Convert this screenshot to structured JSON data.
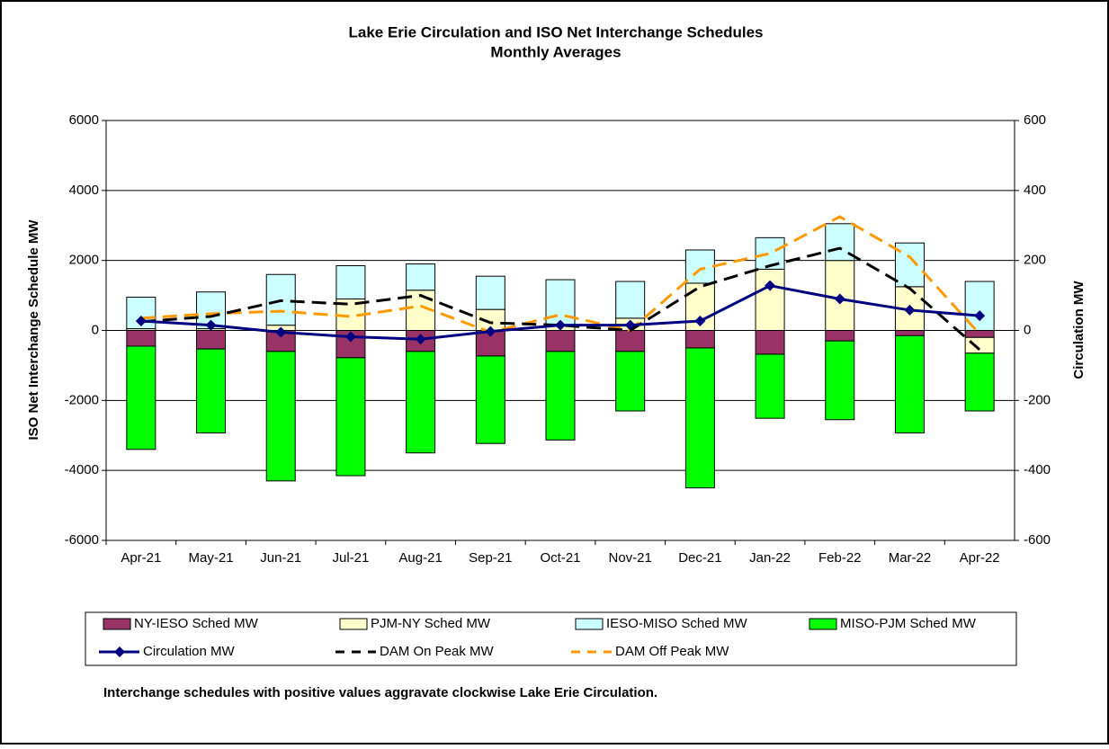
{
  "chart_data": {
    "type": "bar",
    "title": "Lake Erie Circulation and ISO Net Interchange Schedules",
    "subtitle": "Monthly Averages",
    "y_label": "ISO Net Interchange Schedule MW",
    "y2_label": "Circulation MW",
    "note": "Interchange schedules with positive values aggravate clockwise Lake Erie Circulation.",
    "stacked": true,
    "categories": [
      "Apr-21",
      "May-21",
      "Jun-21",
      "Jul-21",
      "Aug-21",
      "Sep-21",
      "Oct-21",
      "Nov-21",
      "Dec-21",
      "Jan-22",
      "Feb-22",
      "Mar-22",
      "Apr-22"
    ],
    "ylim": [
      -6000,
      6000
    ],
    "yticks": [
      -6000,
      -4000,
      -2000,
      0,
      2000,
      4000,
      6000
    ],
    "y2lim": [
      -600,
      600
    ],
    "y2ticks": [
      -600,
      -400,
      -200,
      0,
      200,
      400,
      600
    ],
    "grid": true,
    "series": [
      {
        "name": "NY-IESO Sched MW",
        "kind": "bar",
        "color": "#993366",
        "values": [
          -450,
          -530,
          -600,
          -780,
          -600,
          -730,
          -600,
          -600,
          -500,
          -680,
          -300,
          -150,
          -200
        ]
      },
      {
        "name": "PJM-NY Sched MW",
        "kind": "bar",
        "color": "#ffffcc",
        "values": [
          50,
          50,
          150,
          900,
          1150,
          600,
          150,
          350,
          1350,
          1750,
          2000,
          1250,
          -450
        ]
      },
      {
        "name": "IESO-MISO Sched MW",
        "kind": "bar",
        "color": "#ccffff",
        "values": [
          900,
          1050,
          1450,
          950,
          750,
          950,
          1300,
          1050,
          950,
          900,
          1050,
          1250,
          1400
        ]
      },
      {
        "name": "MISO-PJM Sched MW",
        "kind": "bar",
        "color": "#00ff00",
        "values": [
          -2950,
          -2400,
          -3700,
          -3370,
          -2900,
          -2500,
          -2530,
          -1700,
          -4000,
          -1830,
          -2250,
          -2780,
          -1650
        ]
      },
      {
        "name": "Circulation MW",
        "kind": "line",
        "axis": "y2",
        "color": "#000080",
        "marker": "diamond",
        "values": [
          27,
          15,
          -5,
          -18,
          -25,
          -3,
          15,
          15,
          27,
          128,
          90,
          58,
          42
        ]
      },
      {
        "name": "DAM On Peak MW",
        "kind": "line",
        "axis": "y2",
        "color": "#000000",
        "dashed": true,
        "values": [
          25,
          40,
          85,
          75,
          100,
          22,
          15,
          0,
          125,
          185,
          235,
          120,
          -55
        ]
      },
      {
        "name": "DAM Off Peak MW",
        "kind": "line",
        "axis": "y2",
        "color": "#ff9900",
        "dashed": true,
        "values": [
          35,
          48,
          55,
          40,
          70,
          -5,
          45,
          0,
          175,
          220,
          325,
          210,
          -10
        ]
      }
    ]
  }
}
